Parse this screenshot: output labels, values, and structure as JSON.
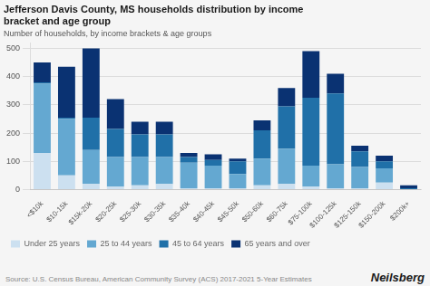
{
  "chart_data": {
    "type": "bar",
    "stacked": true,
    "title": "Jefferson Davis County, MS households distribution by income\nbracket and age group",
    "subtitle": "Number of households, by income brackets & age groups",
    "annotations": [
      "Source: U.S. Census Bureau, American Community Survey (ACS) 2017-2021 5-Year Estimates",
      "Neilsberg"
    ],
    "categories": [
      "<$10k",
      "$10-15k",
      "$15k-20k",
      "$20-25k",
      "$25-30k",
      "$30-35k",
      "$35-40k",
      "$40-45k",
      "$45-50k",
      "$50-60k",
      "$60-75k",
      "$75-100k",
      "$100-125k",
      "$125-150k",
      "$150-200k",
      "$200k+"
    ],
    "series": [
      {
        "name": "Under 25 years",
        "color": "#cce0f0",
        "values": [
          130,
          50,
          20,
          10,
          15,
          20,
          5,
          5,
          5,
          15,
          20,
          10,
          5,
          5,
          25,
          0
        ]
      },
      {
        "name": "25 to 44 years",
        "color": "#64a8d1",
        "values": [
          245,
          200,
          120,
          105,
          100,
          95,
          90,
          80,
          50,
          95,
          125,
          75,
          85,
          75,
          50,
          0
        ]
      },
      {
        "name": "45 to 64 years",
        "color": "#2070a8",
        "values": [
          5,
          5,
          115,
          100,
          80,
          80,
          20,
          20,
          45,
          100,
          150,
          240,
          250,
          55,
          25,
          5
        ]
      },
      {
        "name": "65 years and over",
        "color": "#0a3272",
        "values": [
          70,
          180,
          245,
          105,
          45,
          45,
          15,
          20,
          10,
          35,
          65,
          165,
          70,
          20,
          20,
          10
        ]
      }
    ],
    "ylim": [
      0,
      520
    ],
    "yticks": [
      0,
      100,
      200,
      300,
      400,
      500
    ],
    "grid": true,
    "legend": "bottom"
  }
}
